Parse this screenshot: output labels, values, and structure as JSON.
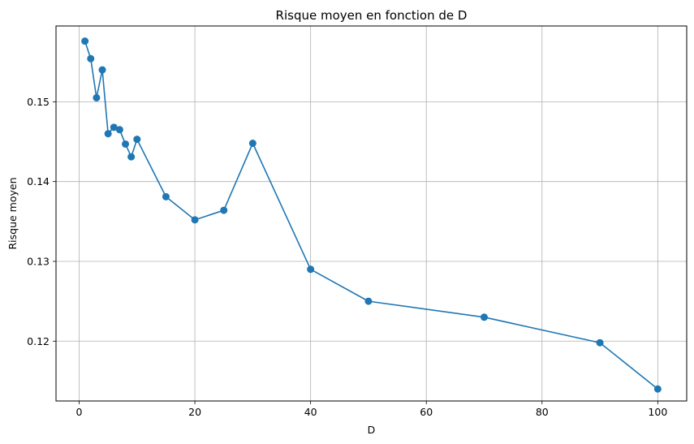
{
  "chart_data": {
    "type": "line",
    "title": "Risque moyen en fonction de D",
    "xlabel": "D",
    "ylabel": "Risque moyen",
    "xlim": [
      -4,
      105
    ],
    "ylim": [
      0.1125,
      0.1595
    ],
    "grid": true,
    "x_ticks": [
      0,
      20,
      40,
      60,
      80,
      100
    ],
    "x_tick_labels": [
      "0",
      "20",
      "40",
      "60",
      "80",
      "100"
    ],
    "y_ticks": [
      0.12,
      0.13,
      0.14,
      0.15
    ],
    "y_tick_labels": [
      "0.12",
      "0.13",
      "0.14",
      "0.15"
    ],
    "series": [
      {
        "color": "#1f77b4",
        "marker": "circle",
        "x": [
          1,
          2,
          3,
          4,
          5,
          6,
          7,
          8,
          9,
          10,
          15,
          20,
          25,
          30,
          40,
          50,
          70,
          90,
          100
        ],
        "y": [
          0.1576,
          0.1554,
          0.1505,
          0.154,
          0.146,
          0.1468,
          0.1465,
          0.1447,
          0.1431,
          0.1453,
          0.1381,
          0.1352,
          0.1364,
          0.1448,
          0.129,
          0.125,
          0.123,
          0.1198,
          0.114
        ]
      }
    ]
  }
}
